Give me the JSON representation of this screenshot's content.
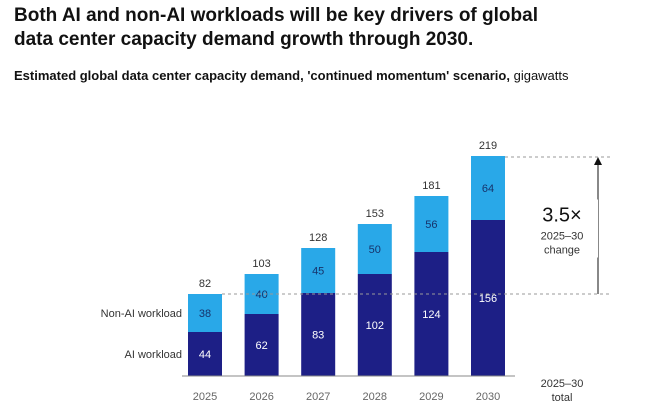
{
  "title": "Both AI and non-AI workloads will be key drivers of global data center capacity demand growth through 2030.",
  "subtitle_strong": "Estimated global data center capacity demand, 'continued momentum' scenario,",
  "subtitle_unit": "gigawatts",
  "colors": {
    "ai": "#1d1f86",
    "non_ai": "#29a8e8",
    "ai_text": "#ffffff",
    "non_ai_text": "#17336b",
    "axis": "#888888"
  },
  "chart_data": {
    "type": "bar",
    "stacked": true,
    "title": "Estimated global data center capacity demand, 'continued momentum' scenario",
    "ylabel": "gigawatts",
    "categories": [
      "2025",
      "2026",
      "2027",
      "2028",
      "2029",
      "2030"
    ],
    "series": [
      {
        "name": "AI workload",
        "values": [
          44,
          62,
          83,
          102,
          124,
          156
        ]
      },
      {
        "name": "Non-AI workload",
        "values": [
          38,
          40,
          45,
          50,
          56,
          64
        ]
      }
    ],
    "totals": [
      82,
      103,
      128,
      153,
      181,
      219
    ],
    "ylim": [
      0,
      219
    ],
    "annotation": {
      "multiplier": "3.5×",
      "range_label": "2025–30",
      "change_label": "change"
    },
    "total_column_label": {
      "line1": "2025–30",
      "line2": "total"
    }
  }
}
